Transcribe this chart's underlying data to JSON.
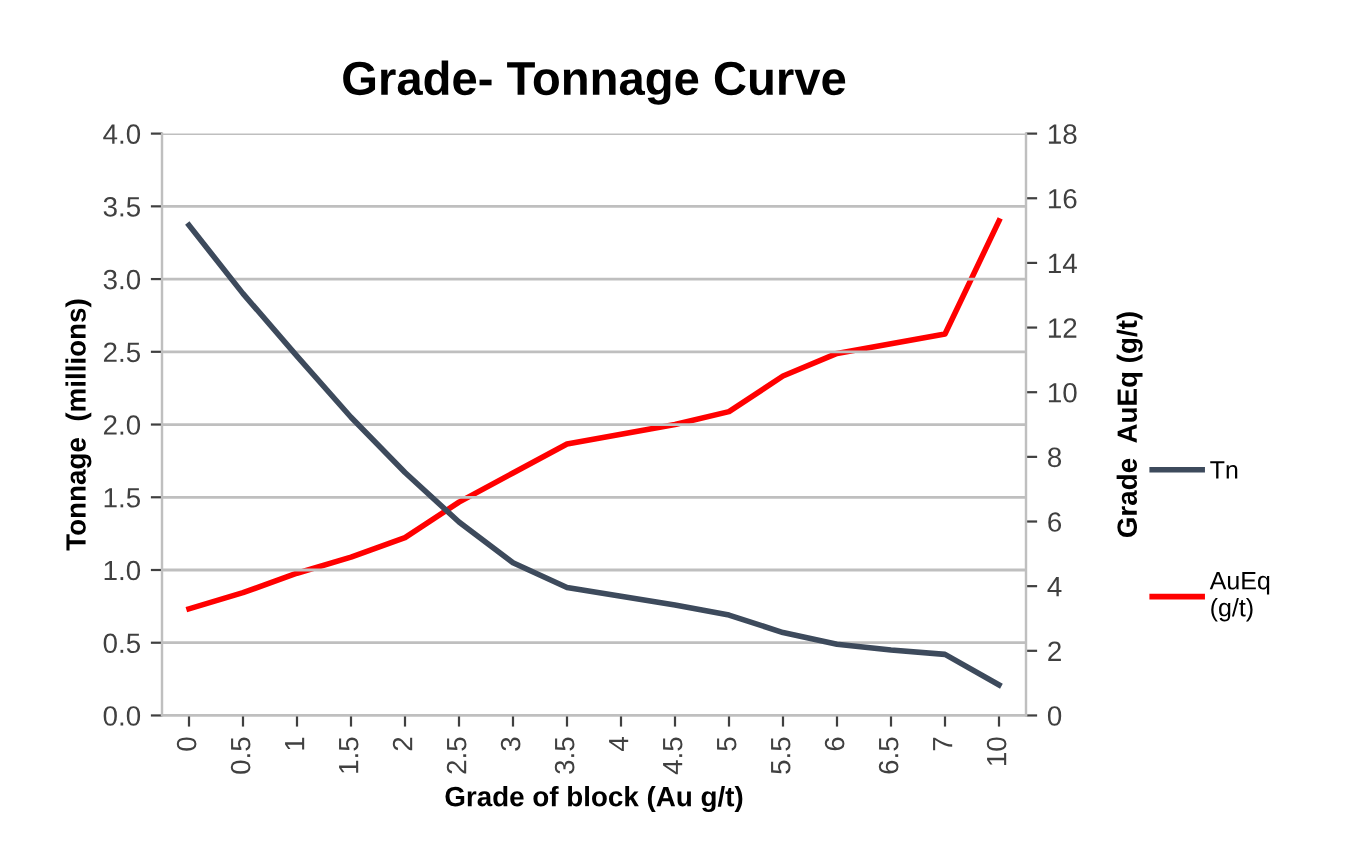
{
  "chart_data": {
    "type": "line",
    "title": "Grade- Tonnage Curve",
    "xlabel": "Grade of block (Au g/t)",
    "ylabel": "Tonnage  (millions)",
    "y2label": "Grade  AuEq (g/t)",
    "categories": [
      "0",
      "0.5",
      "1",
      "1.5",
      "2",
      "2.5",
      "3",
      "3.5",
      "4",
      "4.5",
      "5",
      "5.5",
      "6",
      "6.5",
      "7",
      "10"
    ],
    "series": [
      {
        "name": "Tn",
        "color": "#3d4a5c",
        "values": [
          3.37,
          2.9,
          2.47,
          2.05,
          1.67,
          1.33,
          1.05,
          0.88,
          0.82,
          0.76,
          0.69,
          0.57,
          0.49,
          0.45,
          0.42,
          0.21
        ]
      },
      {
        "name": "AuEq\n(g/t)",
        "color": "#ff0000",
        "axis": "y2",
        "values": [
          3.3,
          3.8,
          4.4,
          4.9,
          5.5,
          6.6,
          7.5,
          8.4,
          8.7,
          9.0,
          9.4,
          10.5,
          11.2,
          11.5,
          11.8,
          15.3
        ]
      }
    ],
    "ylim": [
      0,
      4
    ],
    "yticks": [
      {
        "value": 0,
        "label": "0.0"
      },
      {
        "value": 0.5,
        "label": "0.5"
      },
      {
        "value": 1,
        "label": "1.0"
      },
      {
        "value": 1.5,
        "label": "1.5"
      },
      {
        "value": 2,
        "label": "2.0"
      },
      {
        "value": 2.5,
        "label": "2.5"
      },
      {
        "value": 3,
        "label": "3.0"
      },
      {
        "value": 3.5,
        "label": "3.5"
      },
      {
        "value": 4,
        "label": "4.0"
      }
    ],
    "y2lim": [
      0,
      18
    ],
    "y2ticks": [
      0,
      2,
      4,
      6,
      8,
      10,
      12,
      14,
      16,
      18
    ],
    "grid": "y",
    "legend": "right",
    "marker": "none",
    "line_style": "solid"
  }
}
